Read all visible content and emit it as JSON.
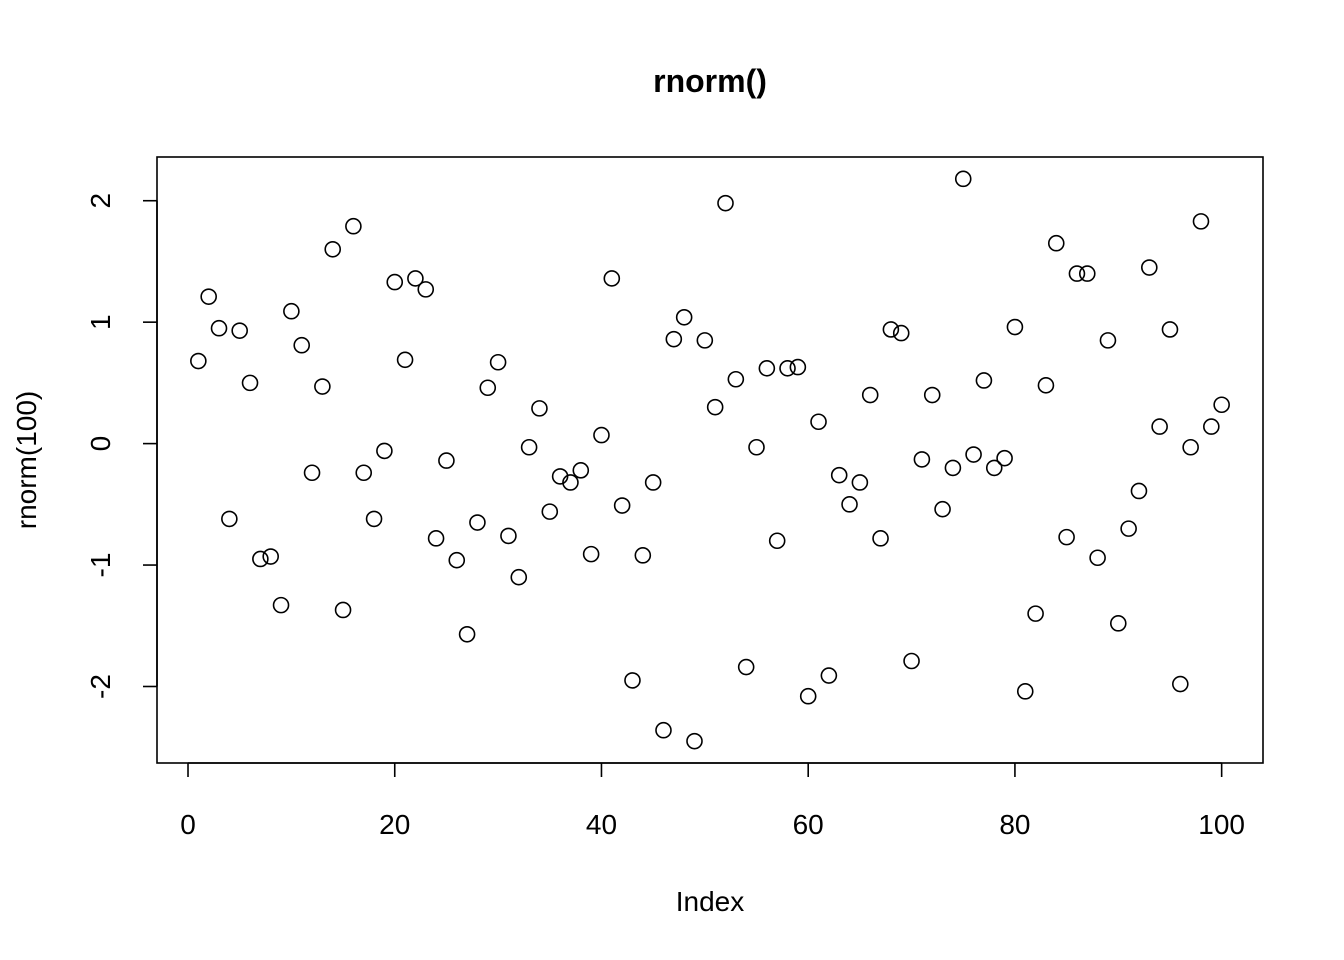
{
  "chart_data": {
    "type": "scatter",
    "title": "rnorm()",
    "xlabel": "Index",
    "ylabel": "rnorm(100)",
    "xlim": [
      -3,
      104
    ],
    "ylim": [
      -2.63,
      2.36
    ],
    "xticks": [
      0,
      20,
      40,
      60,
      80,
      100
    ],
    "yticks": [
      -2,
      -1,
      0,
      1,
      2
    ],
    "xtick_labels": [
      "0",
      "20",
      "40",
      "60",
      "80",
      "100"
    ],
    "ytick_labels": [
      "-2",
      "-1",
      "0",
      "1",
      "2"
    ],
    "marker": "open-circle",
    "grid": false,
    "x": [
      1,
      2,
      3,
      4,
      5,
      6,
      7,
      8,
      9,
      10,
      11,
      12,
      13,
      14,
      15,
      16,
      17,
      18,
      19,
      20,
      21,
      22,
      23,
      24,
      25,
      26,
      27,
      28,
      29,
      30,
      31,
      32,
      33,
      34,
      35,
      36,
      37,
      38,
      39,
      40,
      41,
      42,
      43,
      44,
      45,
      46,
      47,
      48,
      49,
      50,
      51,
      52,
      53,
      54,
      55,
      56,
      57,
      58,
      59,
      60,
      61,
      62,
      63,
      64,
      65,
      66,
      67,
      68,
      69,
      70,
      71,
      72,
      73,
      74,
      75,
      76,
      77,
      78,
      79,
      80,
      81,
      82,
      83,
      84,
      85,
      86,
      87,
      88,
      89,
      90,
      91,
      92,
      93,
      94,
      95,
      96,
      97,
      98,
      99,
      100
    ],
    "y": [
      0.68,
      1.21,
      0.95,
      -0.62,
      0.93,
      0.5,
      -0.95,
      -0.93,
      -1.33,
      1.09,
      0.81,
      -0.24,
      0.47,
      1.6,
      -1.37,
      1.79,
      -0.24,
      -0.62,
      -0.06,
      1.33,
      0.69,
      1.36,
      1.27,
      -0.78,
      -0.14,
      -0.96,
      -1.57,
      -0.65,
      0.46,
      0.67,
      -0.76,
      -1.1,
      -0.03,
      0.29,
      -0.56,
      -0.27,
      -0.32,
      -0.22,
      -0.91,
      0.07,
      1.36,
      -0.51,
      -1.95,
      -0.92,
      -0.32,
      -2.36,
      0.86,
      1.04,
      -2.45,
      0.85,
      0.3,
      1.98,
      0.53,
      -1.84,
      -0.03,
      0.62,
      -0.8,
      0.62,
      0.63,
      -2.08,
      0.18,
      -1.91,
      -0.26,
      -0.5,
      -0.32,
      0.4,
      -0.78,
      0.94,
      0.91,
      -1.79,
      -0.13,
      0.4,
      -0.54,
      -0.2,
      2.18,
      -0.09,
      0.52,
      -0.2,
      -0.12,
      0.96,
      -2.04,
      -1.4,
      0.48,
      1.65,
      -0.77,
      1.4,
      1.4,
      -0.94,
      0.85,
      -1.48,
      -0.7,
      -0.39,
      1.45,
      0.14,
      0.94,
      -1.98,
      -0.03,
      1.83,
      0.14,
      0.32
    ],
    "colors": {
      "point_stroke": "#000000",
      "axis": "#000000",
      "background": "#ffffff"
    }
  }
}
